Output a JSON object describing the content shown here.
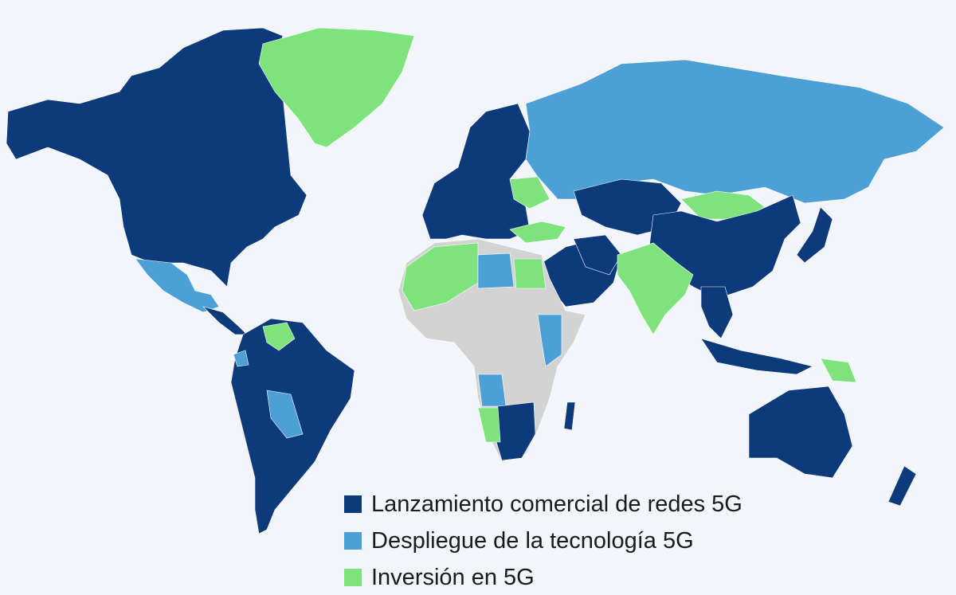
{
  "colors": {
    "background": "#f2f6fa",
    "commercial": "#0d3a7b",
    "deployment": "#4ca0d6",
    "investment": "#7ee37d",
    "nodata": "#d3d3d3"
  },
  "legend": [
    {
      "label": "Lanzamiento comercial de redes 5G",
      "color": "#0d3a7b"
    },
    {
      "label": "Despliegue de la tecnología 5G",
      "color": "#4ca0d6"
    },
    {
      "label": "Inversión en 5G",
      "color": "#7ee37d"
    }
  ]
}
